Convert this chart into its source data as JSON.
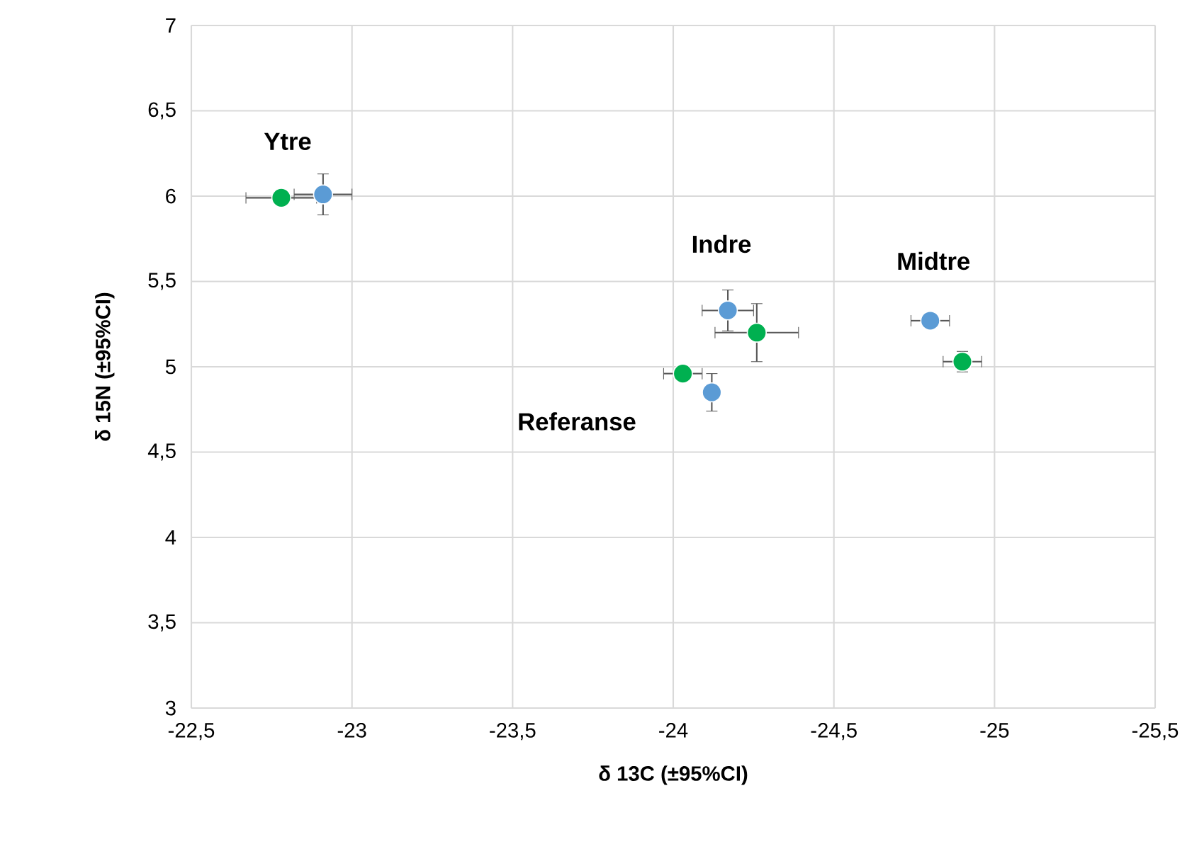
{
  "chart_data": {
    "type": "scatter",
    "xlabel": "δ 13C (±95%CI)",
    "ylabel": "δ 15N (±95%CI)",
    "series": [
      {
        "color": "#5b9bd5",
        "x": [
          -22.91,
          -24.17,
          -24.12,
          -24.8
        ],
        "values": [
          6.01,
          5.33,
          4.85,
          5.27
        ],
        "xerrors": [
          0.09,
          0.08,
          null,
          0.06
        ],
        "errors": [
          0.12,
          0.12,
          0.11,
          null
        ]
      },
      {
        "color": "#00b050",
        "x": [
          -22.78,
          -24.26,
          -24.03,
          -24.9
        ],
        "values": [
          5.99,
          5.2,
          4.96,
          5.03
        ],
        "xerrors": [
          0.11,
          0.13,
          0.06,
          0.06
        ],
        "errors": [
          null,
          0.17,
          null,
          0.06
        ]
      }
    ],
    "xlim": [
      -22.5,
      -25.5
    ],
    "xticks": [
      {
        "value": -22.5,
        "label": "-22,5"
      },
      -23,
      {
        "value": -23.5,
        "label": "-23,5"
      },
      -24,
      {
        "value": -24.5,
        "label": "-24,5"
      },
      -25,
      {
        "value": -25.5,
        "label": "-25,5"
      }
    ],
    "ylim": [
      3,
      7
    ],
    "yticks": [
      3,
      {
        "value": 3.5,
        "label": "3,5"
      },
      4,
      {
        "value": 4.5,
        "label": "4,5"
      },
      5,
      {
        "value": 5.5,
        "label": "5,5"
      },
      6,
      {
        "value": 6.5,
        "label": "6,5"
      },
      7
    ],
    "grid": true,
    "marker": "circle",
    "annotations": [
      "Ytre",
      "Indre",
      "Midtre",
      "Referanse"
    ]
  }
}
